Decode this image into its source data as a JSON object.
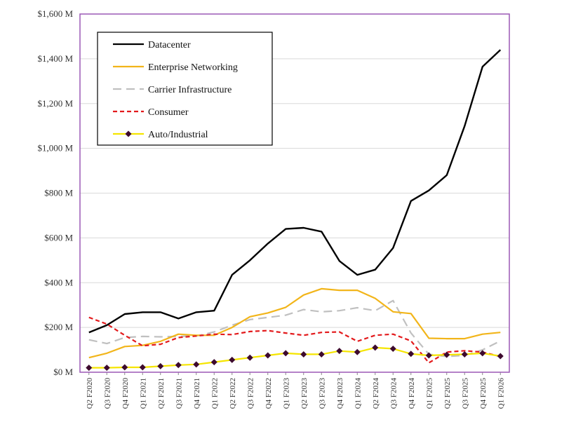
{
  "chart_data": {
    "type": "line",
    "title": "",
    "xlabel": "",
    "ylabel": "",
    "ylim": [
      0,
      1600
    ],
    "y_ticks": [
      "$0 M",
      "$200 M",
      "$400 M",
      "$600 M",
      "$800 M",
      "$1,000 M",
      "$1,200 M",
      "$1,400 M",
      "$1,600 M"
    ],
    "y_tick_values": [
      0,
      200,
      400,
      600,
      800,
      1000,
      1200,
      1400,
      1600
    ],
    "grid": true,
    "legend_position": "top-left",
    "plot_border_color": "#9b59b6",
    "categories": [
      "Q2 F2020",
      "Q3 F2020",
      "Q4 F2020",
      "Q1 F2021",
      "Q2 F2021",
      "Q3 F2021",
      "Q4 F2021",
      "Q1 F2022",
      "Q2 F2022",
      "Q3 F2022",
      "Q4 F2022",
      "Q1 F2023",
      "Q2 F2023",
      "Q3 F2023",
      "Q4 F2023",
      "Q1 F2024",
      "Q2 F2024",
      "Q3 F2024",
      "Q4 F2024",
      "Q1 F2025",
      "Q2 F2025",
      "Q3 F2025",
      "Q4 F2025",
      "Q1 F2026"
    ],
    "series": [
      {
        "name": "Datacenter",
        "color": "#000000",
        "style": "solid",
        "marker": "none",
        "values": [
          178,
          210,
          260,
          268,
          268,
          240,
          268,
          275,
          435,
          500,
          575,
          640,
          645,
          628,
          497,
          435,
          458,
          555,
          765,
          812,
          880,
          1100,
          1365,
          1440
        ]
      },
      {
        "name": "Enterprise Networking",
        "color": "#f2b51a",
        "style": "solid",
        "marker": "none",
        "values": [
          65,
          85,
          115,
          120,
          138,
          170,
          165,
          165,
          200,
          248,
          265,
          290,
          345,
          373,
          366,
          366,
          330,
          270,
          262,
          152,
          150,
          150,
          170,
          178
        ]
      },
      {
        "name": "Carrier Infrastructure",
        "color": "#c0c0c0",
        "style": "dashed",
        "marker": "none",
        "values": [
          145,
          128,
          155,
          160,
          158,
          160,
          162,
          180,
          210,
          235,
          245,
          255,
          280,
          270,
          275,
          288,
          275,
          320,
          175,
          80,
          70,
          75,
          100,
          140
        ]
      },
      {
        "name": "Consumer",
        "color": "#e31a1c",
        "style": "dashed",
        "marker": "none",
        "values": [
          245,
          215,
          165,
          118,
          125,
          155,
          162,
          170,
          168,
          182,
          186,
          175,
          165,
          178,
          180,
          138,
          165,
          170,
          140,
          42,
          90,
          96,
          90,
          70
        ]
      },
      {
        "name": "Auto/Industrial",
        "color": "#f5e500",
        "style": "solid",
        "marker": "diamond",
        "marker_color": "#3d0a2e",
        "values": [
          20,
          20,
          22,
          22,
          27,
          32,
          35,
          45,
          55,
          65,
          75,
          85,
          80,
          80,
          95,
          90,
          110,
          105,
          82,
          75,
          78,
          80,
          85,
          72
        ]
      }
    ]
  }
}
